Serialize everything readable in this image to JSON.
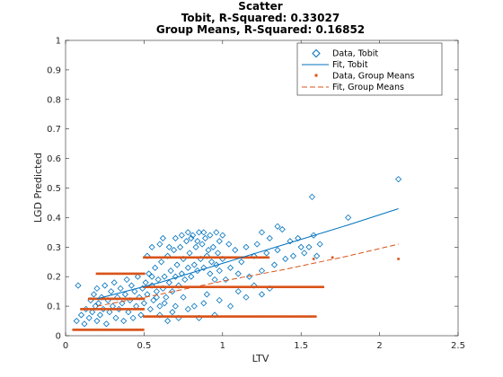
{
  "chart_data": {
    "type": "scatter",
    "title_lines": [
      "Scatter",
      "Tobit, R-Squared: 0.33027",
      "Group Means, R-Squared: 0.16852"
    ],
    "xlabel": "LTV",
    "ylabel": "LGD Predicted",
    "xlim": [
      0,
      2.5
    ],
    "ylim": [
      0,
      1
    ],
    "x_ticks": [
      "0",
      "0.5",
      "1",
      "1.5",
      "2",
      "2.5"
    ],
    "y_ticks": [
      "0",
      "0.1",
      "0.2",
      "0.3",
      "0.4",
      "0.5",
      "0.6",
      "0.7",
      "0.8",
      "0.9",
      "1"
    ],
    "grid": false,
    "legend_position": "top-right",
    "series": [
      {
        "name": "Data, Tobit",
        "kind": "scatter",
        "marker": "diamond",
        "color": "#0072bd",
        "points": [
          [
            0.07,
            0.05
          ],
          [
            0.08,
            0.17
          ],
          [
            0.1,
            0.07
          ],
          [
            0.12,
            0.04
          ],
          [
            0.13,
            0.09
          ],
          [
            0.15,
            0.06
          ],
          [
            0.16,
            0.12
          ],
          [
            0.17,
            0.08
          ],
          [
            0.18,
            0.14
          ],
          [
            0.19,
            0.1
          ],
          [
            0.2,
            0.05
          ],
          [
            0.2,
            0.16
          ],
          [
            0.21,
            0.11
          ],
          [
            0.22,
            0.07
          ],
          [
            0.23,
            0.13
          ],
          [
            0.24,
            0.09
          ],
          [
            0.25,
            0.17
          ],
          [
            0.26,
            0.04
          ],
          [
            0.27,
            0.12
          ],
          [
            0.28,
            0.08
          ],
          [
            0.29,
            0.15
          ],
          [
            0.3,
            0.1
          ],
          [
            0.31,
            0.18
          ],
          [
            0.32,
            0.06
          ],
          [
            0.33,
            0.13
          ],
          [
            0.34,
            0.09
          ],
          [
            0.35,
            0.16
          ],
          [
            0.36,
            0.11
          ],
          [
            0.37,
            0.05
          ],
          [
            0.38,
            0.14
          ],
          [
            0.39,
            0.19
          ],
          [
            0.4,
            0.08
          ],
          [
            0.41,
            0.12
          ],
          [
            0.42,
            0.17
          ],
          [
            0.43,
            0.06
          ],
          [
            0.44,
            0.15
          ],
          [
            0.45,
            0.1
          ],
          [
            0.46,
            0.2
          ],
          [
            0.47,
            0.13
          ],
          [
            0.48,
            0.07
          ],
          [
            0.49,
            0.16
          ],
          [
            0.5,
            0.11
          ],
          [
            0.51,
            0.18
          ],
          [
            0.52,
            0.14
          ],
          [
            0.53,
            0.21
          ],
          [
            0.54,
            0.09
          ],
          [
            0.55,
            0.17
          ],
          [
            0.56,
            0.12
          ],
          [
            0.57,
            0.23
          ],
          [
            0.58,
            0.15
          ],
          [
            0.59,
            0.19
          ],
          [
            0.6,
            0.1
          ],
          [
            0.61,
            0.25
          ],
          [
            0.62,
            0.16
          ],
          [
            0.63,
            0.2
          ],
          [
            0.64,
            0.13
          ],
          [
            0.65,
            0.27
          ],
          [
            0.66,
            0.18
          ],
          [
            0.67,
            0.22
          ],
          [
            0.68,
            0.15
          ],
          [
            0.69,
            0.29
          ],
          [
            0.7,
            0.2
          ],
          [
            0.71,
            0.24
          ],
          [
            0.72,
            0.17
          ],
          [
            0.73,
            0.3
          ],
          [
            0.74,
            0.21
          ],
          [
            0.75,
            0.26
          ],
          [
            0.76,
            0.19
          ],
          [
            0.77,
            0.32
          ],
          [
            0.78,
            0.23
          ],
          [
            0.79,
            0.28
          ],
          [
            0.8,
            0.2
          ],
          [
            0.81,
            0.34
          ],
          [
            0.82,
            0.24
          ],
          [
            0.83,
            0.3
          ],
          [
            0.84,
            0.22
          ],
          [
            0.85,
            0.35
          ],
          [
            0.86,
            0.26
          ],
          [
            0.87,
            0.31
          ],
          [
            0.88,
            0.23
          ],
          [
            0.89,
            0.33
          ],
          [
            0.9,
            0.27
          ],
          [
            0.91,
            0.29
          ],
          [
            0.92,
            0.21
          ],
          [
            0.93,
            0.25
          ],
          [
            0.94,
            0.3
          ],
          [
            0.95,
            0.19
          ],
          [
            0.96,
            0.24
          ],
          [
            0.97,
            0.28
          ],
          [
            0.98,
            0.22
          ],
          [
            1.0,
            0.26
          ],
          [
            1.02,
            0.19
          ],
          [
            1.05,
            0.23
          ],
          [
            1.08,
            0.29
          ],
          [
            1.1,
            0.21
          ],
          [
            1.12,
            0.25
          ],
          [
            1.15,
            0.3
          ],
          [
            1.17,
            0.2
          ],
          [
            1.2,
            0.27
          ],
          [
            1.22,
            0.31
          ],
          [
            1.25,
            0.22
          ],
          [
            1.28,
            0.28
          ],
          [
            1.3,
            0.33
          ],
          [
            1.33,
            0.24
          ],
          [
            1.35,
            0.29
          ],
          [
            1.38,
            0.36
          ],
          [
            1.4,
            0.26
          ],
          [
            1.43,
            0.32
          ],
          [
            1.45,
            0.27
          ],
          [
            1.48,
            0.33
          ],
          [
            1.5,
            0.3
          ],
          [
            1.52,
            0.28
          ],
          [
            1.55,
            0.3
          ],
          [
            1.57,
            0.47
          ],
          [
            1.58,
            0.34
          ],
          [
            1.6,
            0.27
          ],
          [
            1.62,
            0.31
          ],
          [
            1.8,
            0.4
          ],
          [
            2.12,
            0.53
          ],
          [
            0.6,
            0.07
          ],
          [
            0.65,
            0.05
          ],
          [
            0.7,
            0.1
          ],
          [
            0.72,
            0.06
          ],
          [
            0.78,
            0.09
          ],
          [
            0.85,
            0.06
          ],
          [
            0.88,
            0.11
          ],
          [
            0.95,
            0.07
          ],
          [
            0.58,
            0.13
          ],
          [
            0.63,
            0.11
          ],
          [
            0.68,
            0.08
          ],
          [
            0.75,
            0.13
          ],
          [
            0.82,
            0.1
          ],
          [
            0.9,
            0.14
          ],
          [
            0.98,
            0.12
          ],
          [
            1.05,
            0.1
          ],
          [
            1.1,
            0.15
          ],
          [
            1.15,
            0.13
          ],
          [
            1.2,
            0.17
          ],
          [
            1.25,
            0.14
          ],
          [
            1.3,
            0.16
          ],
          [
            0.55,
            0.2
          ],
          [
            0.52,
            0.27
          ],
          [
            0.55,
            0.3
          ],
          [
            0.6,
            0.31
          ],
          [
            0.62,
            0.33
          ],
          [
            0.66,
            0.3
          ],
          [
            0.7,
            0.33
          ],
          [
            0.74,
            0.34
          ],
          [
            0.78,
            0.35
          ],
          [
            0.8,
            0.33
          ],
          [
            0.84,
            0.32
          ],
          [
            0.88,
            0.35
          ],
          [
            0.92,
            0.34
          ],
          [
            0.96,
            0.35
          ],
          [
            1.0,
            0.34
          ],
          [
            1.04,
            0.31
          ],
          [
            0.98,
            0.32
          ],
          [
            1.35,
            0.37
          ],
          [
            1.25,
            0.35
          ]
        ]
      },
      {
        "name": "Fit, Tobit",
        "kind": "line",
        "color": "#0072bd",
        "dash": "solid",
        "x": [
          0.2,
          0.6,
          1.0,
          1.4,
          1.8,
          2.12
        ],
        "y": [
          0.125,
          0.18,
          0.245,
          0.31,
          0.375,
          0.43
        ]
      },
      {
        "name": "Data, Group Means",
        "kind": "scatter",
        "marker": "square",
        "color": "#d95319",
        "segments": [
          {
            "y": 0.02,
            "x": [
              0.05,
              0.5
            ]
          },
          {
            "y": 0.065,
            "x": [
              0.5,
              1.6
            ]
          },
          {
            "y": 0.09,
            "x": [
              0.1,
              0.5
            ]
          },
          {
            "y": 0.125,
            "x": [
              0.15,
              0.5
            ]
          },
          {
            "y": 0.165,
            "x": [
              0.5,
              1.65
            ]
          },
          {
            "y": 0.21,
            "x": [
              0.2,
              0.5
            ]
          },
          {
            "y": 0.265,
            "x": [
              0.5,
              1.3
            ]
          }
        ],
        "points": [
          [
            1.58,
            0.26
          ],
          [
            2.12,
            0.26
          ],
          [
            1.7,
            0.265
          ]
        ]
      },
      {
        "name": "Fit, Group Means",
        "kind": "line",
        "color": "#d95319",
        "dash": "dashed",
        "x": [
          0.2,
          0.6,
          1.0,
          1.4,
          1.8,
          2.12
        ],
        "y": [
          0.1,
          0.14,
          0.185,
          0.225,
          0.27,
          0.31
        ]
      }
    ]
  }
}
